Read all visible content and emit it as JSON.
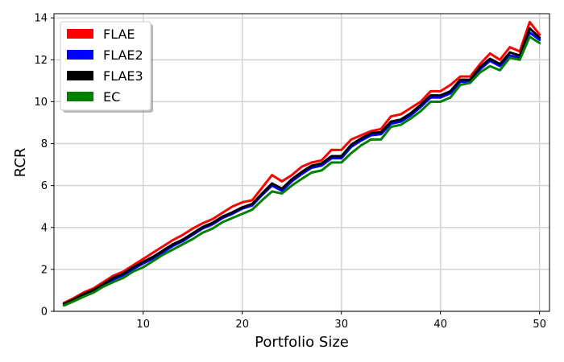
{
  "chart_data": {
    "type": "line",
    "title": "",
    "xlabel": "Portfolio Size",
    "ylabel": "RCR",
    "xlim": [
      1,
      51
    ],
    "ylim": [
      0,
      14.2
    ],
    "xticks": [
      10,
      20,
      30,
      40,
      50
    ],
    "yticks": [
      0,
      2,
      4,
      6,
      8,
      10,
      12,
      14
    ],
    "grid": true,
    "legend_position": "top-left",
    "x": [
      2,
      3,
      4,
      5,
      6,
      7,
      8,
      9,
      10,
      11,
      12,
      13,
      14,
      15,
      16,
      17,
      18,
      19,
      20,
      21,
      22,
      23,
      24,
      25,
      26,
      27,
      28,
      29,
      30,
      31,
      32,
      33,
      34,
      35,
      36,
      37,
      38,
      39,
      40,
      41,
      42,
      43,
      44,
      45,
      46,
      47,
      48,
      49,
      50
    ],
    "series": [
      {
        "name": "FLAE",
        "color": "#ff0000",
        "values": [
          0.4,
          0.63,
          0.9,
          1.1,
          1.4,
          1.7,
          1.9,
          2.2,
          2.5,
          2.8,
          3.1,
          3.4,
          3.65,
          3.95,
          4.2,
          4.4,
          4.7,
          5.0,
          5.2,
          5.3,
          5.9,
          6.5,
          6.2,
          6.5,
          6.9,
          7.1,
          7.2,
          7.7,
          7.7,
          8.2,
          8.4,
          8.6,
          8.7,
          9.3,
          9.4,
          9.7,
          10.0,
          10.5,
          10.5,
          10.8,
          11.2,
          11.2,
          11.8,
          12.3,
          12.0,
          12.6,
          12.4,
          13.8,
          13.2
        ]
      },
      {
        "name": "FLAE2",
        "color": "#0000ff",
        "values": [
          0.35,
          0.55,
          0.78,
          0.98,
          1.25,
          1.52,
          1.72,
          2.02,
          2.28,
          2.52,
          2.82,
          3.12,
          3.35,
          3.65,
          3.95,
          4.15,
          4.45,
          4.65,
          4.9,
          5.05,
          5.55,
          6.0,
          5.75,
          6.2,
          6.55,
          6.85,
          6.95,
          7.3,
          7.3,
          7.85,
          8.15,
          8.4,
          8.45,
          8.95,
          9.05,
          9.35,
          9.75,
          10.2,
          10.2,
          10.4,
          10.95,
          10.95,
          11.55,
          11.95,
          11.7,
          12.2,
          12.1,
          13.3,
          12.95
        ]
      },
      {
        "name": "FLAE3",
        "color": "#000000",
        "values": [
          0.35,
          0.57,
          0.82,
          1.02,
          1.3,
          1.6,
          1.8,
          2.1,
          2.36,
          2.6,
          2.9,
          3.2,
          3.42,
          3.72,
          4.02,
          4.22,
          4.52,
          4.72,
          4.96,
          5.12,
          5.62,
          6.1,
          5.85,
          6.3,
          6.65,
          6.95,
          7.05,
          7.4,
          7.4,
          7.95,
          8.25,
          8.5,
          8.55,
          9.05,
          9.15,
          9.45,
          9.85,
          10.3,
          10.3,
          10.5,
          11.05,
          11.05,
          11.65,
          12.05,
          11.8,
          12.35,
          12.2,
          13.5,
          13.05
        ]
      },
      {
        "name": "EC",
        "color": "#008000",
        "values": [
          0.28,
          0.48,
          0.7,
          0.9,
          1.18,
          1.4,
          1.6,
          1.9,
          2.1,
          2.4,
          2.7,
          2.95,
          3.2,
          3.45,
          3.75,
          3.95,
          4.25,
          4.45,
          4.65,
          4.85,
          5.3,
          5.72,
          5.62,
          6.0,
          6.32,
          6.62,
          6.72,
          7.1,
          7.1,
          7.55,
          7.92,
          8.2,
          8.2,
          8.8,
          8.9,
          9.2,
          9.55,
          10.0,
          10.0,
          10.2,
          10.8,
          10.9,
          11.4,
          11.7,
          11.5,
          12.1,
          12.0,
          13.1,
          12.8
        ]
      }
    ]
  }
}
